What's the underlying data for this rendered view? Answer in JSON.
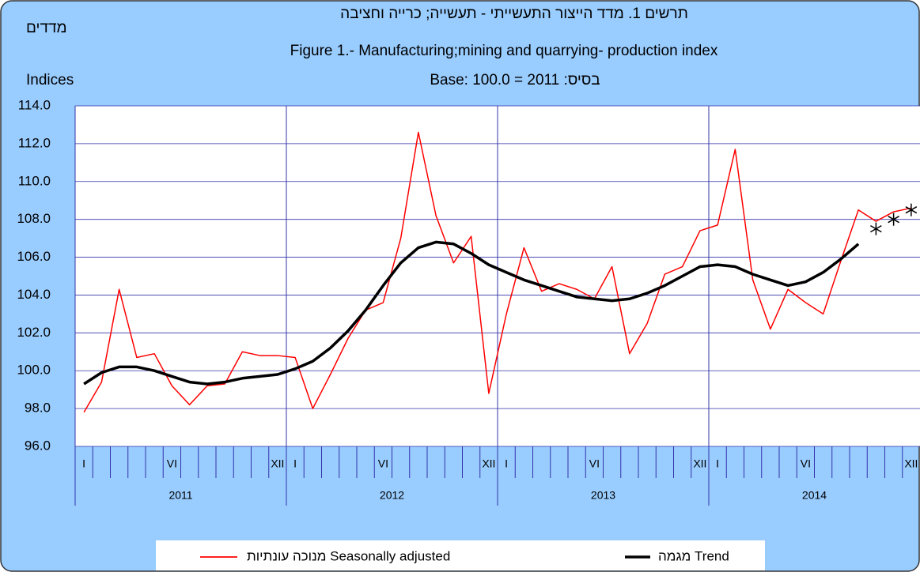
{
  "chart_data": {
    "type": "line",
    "title": "תרשים 1. מדד הייצור התעשייתי - תעשייה; כרייה וחציבה",
    "subtitle": "Figure 1.- Manufacturing;mining and quarrying- production index",
    "base_note": "Base: 100.0 = 2011 :בסיס",
    "y_label_hebrew": "מדדים",
    "y_label": "Indices",
    "categories": [
      "I",
      null,
      null,
      null,
      null,
      "VI",
      null,
      null,
      null,
      null,
      null,
      "XII",
      "I",
      null,
      null,
      null,
      null,
      "VI",
      null,
      null,
      null,
      null,
      null,
      "XII",
      "I",
      null,
      null,
      null,
      null,
      "VI",
      null,
      null,
      null,
      null,
      null,
      "XII",
      "I",
      null,
      null,
      null,
      null,
      "VI",
      null,
      null,
      null,
      null,
      null,
      "XII"
    ],
    "years": [
      "2011",
      "2012",
      "2013",
      "2014"
    ],
    "series": [
      {
        "name": "מנוכה עונתיות Seasonally adjusted",
        "color": "#ff0000",
        "values": [
          97.8,
          99.4,
          104.3,
          100.7,
          100.9,
          99.2,
          98.2,
          99.2,
          99.3,
          101.0,
          100.8,
          100.8,
          100.7,
          98.0,
          99.8,
          101.7,
          103.2,
          103.6,
          107.0,
          112.6,
          108.2,
          105.7,
          107.1,
          98.8,
          103.0,
          106.5,
          104.2,
          104.6,
          104.3,
          103.8,
          105.5,
          100.9,
          102.5,
          105.1,
          105.5,
          107.4,
          107.7,
          111.7,
          104.8,
          102.2,
          104.3,
          103.6,
          103.0,
          105.8,
          108.5,
          107.9,
          108.4,
          108.6
        ]
      },
      {
        "name": "מגמה Trend",
        "color": "#000000",
        "values": [
          99.3,
          99.9,
          100.2,
          100.2,
          100.0,
          99.7,
          99.4,
          99.3,
          99.4,
          99.6,
          99.7,
          99.8,
          100.1,
          100.5,
          101.2,
          102.1,
          103.2,
          104.5,
          105.7,
          106.5,
          106.8,
          106.7,
          106.2,
          105.6,
          105.2,
          104.8,
          104.5,
          104.2,
          103.9,
          103.8,
          103.7,
          103.8,
          104.1,
          104.5,
          105.0,
          105.5,
          105.6,
          105.5,
          105.1,
          104.8,
          104.5,
          104.7,
          105.2,
          105.9,
          106.7,
          null,
          null,
          null
        ]
      },
      {
        "color": "#000000",
        "marker": "asterisk",
        "values": [
          null,
          null,
          null,
          null,
          null,
          null,
          null,
          null,
          null,
          null,
          null,
          null,
          null,
          null,
          null,
          null,
          null,
          null,
          null,
          null,
          null,
          null,
          null,
          null,
          null,
          null,
          null,
          null,
          null,
          null,
          null,
          null,
          null,
          null,
          null,
          null,
          null,
          null,
          null,
          null,
          null,
          null,
          null,
          null,
          null,
          107.5,
          108.0,
          108.5
        ]
      }
    ],
    "ylim": [
      96,
      114
    ],
    "yticks": [
      {
        "value": 96,
        "label": "96.0"
      },
      {
        "value": 98,
        "label": "98.0"
      },
      {
        "value": 100,
        "label": "100.0"
      },
      {
        "value": 102,
        "label": "102.0"
      },
      {
        "value": 104,
        "label": "104.0"
      },
      {
        "value": 106,
        "label": "106.0"
      },
      {
        "value": 108,
        "label": "108.0"
      },
      {
        "value": 110,
        "label": "110.0"
      },
      {
        "value": 112,
        "label": "112.0"
      },
      {
        "value": 114,
        "label": "114.0"
      }
    ],
    "grid": true,
    "legend": "bottom"
  }
}
